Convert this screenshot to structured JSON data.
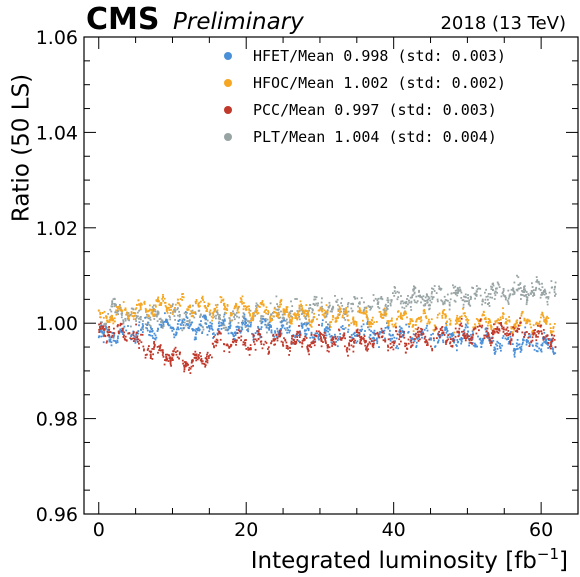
{
  "header": {
    "experiment": "CMS",
    "status": "Preliminary",
    "run_info": "2018 (13 TeV)"
  },
  "chart_data": {
    "type": "scatter",
    "xlabel": "Integrated luminosity [fb",
    "xlabel_sup": "−1",
    "xlabel_close": "]",
    "ylabel": "Ratio (50 LS)",
    "xlim": [
      -2,
      65
    ],
    "ylim": [
      0.96,
      1.06
    ],
    "xticks": [
      0,
      20,
      40,
      60
    ],
    "xtick_labels": [
      "0",
      "20",
      "40",
      "60"
    ],
    "yticks": [
      0.96,
      0.98,
      1.0,
      1.02,
      1.04,
      1.06
    ],
    "ytick_labels": [
      "0.96",
      "0.98",
      "1.00",
      "1.02",
      "1.04",
      "1.06"
    ],
    "legend_position": "top-right",
    "x_range_of_data": [
      0,
      62
    ],
    "series": [
      {
        "name": "HFET / Mean",
        "legend": "HFET/Mean 0.998 (std: 0.003)",
        "mean": 0.998,
        "std": 0.003,
        "color": "#4a90d9",
        "profile": [
          [
            0,
            0.997
          ],
          [
            5,
            0.9985
          ],
          [
            10,
            0.9995
          ],
          [
            20,
            0.9988
          ],
          [
            30,
            0.998
          ],
          [
            40,
            0.9978
          ],
          [
            50,
            0.997
          ],
          [
            55,
            0.996
          ],
          [
            62,
            0.9955
          ]
        ]
      },
      {
        "name": "HFOC / Mean",
        "legend": "HFOC/Mean 1.002 (std: 0.002)",
        "mean": 1.002,
        "std": 0.002,
        "color": "#f5a623",
        "profile": [
          [
            0,
            1.001
          ],
          [
            5,
            1.003
          ],
          [
            10,
            1.004
          ],
          [
            15,
            1.0035
          ],
          [
            20,
            1.003
          ],
          [
            30,
            1.0015
          ],
          [
            40,
            1.0008
          ],
          [
            50,
            1.0005
          ],
          [
            62,
            1.0
          ]
        ]
      },
      {
        "name": "PCC / Mean",
        "legend": "PCC/Mean  0.997 (std: 0.003)",
        "mean": 0.997,
        "std": 0.003,
        "color": "#c0392b",
        "profile": [
          [
            0,
            0.999
          ],
          [
            4,
            0.998
          ],
          [
            6,
            0.995
          ],
          [
            10,
            0.993
          ],
          [
            14,
            0.9915
          ],
          [
            16,
            0.996
          ],
          [
            20,
            0.996
          ],
          [
            30,
            0.9965
          ],
          [
            40,
            0.9965
          ],
          [
            48,
            0.9975
          ],
          [
            55,
            0.9985
          ],
          [
            62,
            0.997
          ]
        ]
      },
      {
        "name": "PLT / Mean",
        "legend": "PLT/Mean  1.004 (std: 0.004)",
        "mean": 1.004,
        "std": 0.004,
        "color": "#98a4a4",
        "profile": [
          [
            0,
            0.999
          ],
          [
            2,
            1.003
          ],
          [
            5,
            1.001
          ],
          [
            10,
            1.0015
          ],
          [
            20,
            1.001
          ],
          [
            30,
            1.003
          ],
          [
            40,
            1.0045
          ],
          [
            50,
            1.006
          ],
          [
            55,
            1.0065
          ],
          [
            62,
            1.007
          ]
        ]
      }
    ]
  }
}
